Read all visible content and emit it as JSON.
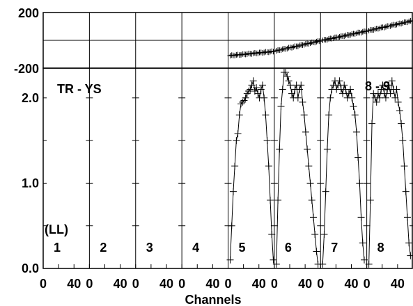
{
  "chart_data": {
    "type": "scatter",
    "title": "TR - YS",
    "subtitle": "8 - 9",
    "xlabel": "Channels",
    "panel_labels": [
      "1",
      "2",
      "3",
      "4",
      "5",
      "6",
      "7",
      "8"
    ],
    "polarization_label": "(LL)",
    "x_ticks": [
      "0",
      "40"
    ],
    "phase": {
      "ylim": [
        -200,
        200
      ],
      "y_ticks": [
        "200",
        "-200"
      ],
      "series": [
        {
          "panel": 5,
          "start": -110,
          "end": -80
        },
        {
          "panel": 6,
          "start": -75,
          "end": -5
        },
        {
          "panel": 7,
          "start": 0,
          "end": 65
        },
        {
          "panel": 8,
          "start": 70,
          "end": 140
        }
      ]
    },
    "amplitude": {
      "ylim": [
        0,
        2.3
      ],
      "y_ticks": [
        "0.0",
        "1.0",
        "2.0"
      ],
      "series": [
        {
          "panel": 5,
          "points": [
            [
              0,
              0.1
            ],
            [
              2,
              0.5
            ],
            [
              4,
              0.9
            ],
            [
              6,
              1.2
            ],
            [
              8,
              1.5
            ],
            [
              10,
              1.58
            ],
            [
              12,
              1.8
            ],
            [
              14,
              1.93
            ],
            [
              16,
              1.95
            ],
            [
              18,
              1.97
            ],
            [
              20,
              2.0
            ],
            [
              22,
              2.05
            ],
            [
              24,
              2.08
            ],
            [
              26,
              2.1
            ],
            [
              28,
              2.15
            ],
            [
              30,
              2.2
            ],
            [
              32,
              2.08
            ],
            [
              34,
              2.12
            ],
            [
              36,
              2.05
            ],
            [
              38,
              2.0
            ],
            [
              40,
              2.1
            ],
            [
              42,
              2.15
            ],
            [
              44,
              2.0
            ],
            [
              46,
              1.8
            ],
            [
              48,
              1.5
            ],
            [
              50,
              1.2
            ],
            [
              52,
              0.8
            ],
            [
              54,
              0.4
            ],
            [
              56,
              0.1
            ]
          ]
        },
        {
          "panel": 6,
          "points": [
            [
              0,
              0.05
            ],
            [
              2,
              0.8
            ],
            [
              4,
              1.4
            ],
            [
              6,
              1.9
            ],
            [
              8,
              2.1
            ],
            [
              10,
              2.3
            ],
            [
              12,
              2.3
            ],
            [
              14,
              2.25
            ],
            [
              16,
              2.2
            ],
            [
              18,
              2.15
            ],
            [
              20,
              2.05
            ],
            [
              22,
              2.0
            ],
            [
              24,
              2.1
            ],
            [
              26,
              2.15
            ],
            [
              28,
              2.0
            ],
            [
              30,
              2.1
            ],
            [
              32,
              2.15
            ],
            [
              34,
              1.95
            ],
            [
              36,
              1.8
            ],
            [
              38,
              1.6
            ],
            [
              40,
              1.4
            ],
            [
              42,
              1.2
            ],
            [
              44,
              1.0
            ],
            [
              46,
              0.8
            ],
            [
              48,
              0.6
            ],
            [
              50,
              0.4
            ],
            [
              52,
              0.2
            ],
            [
              54,
              0.05
            ]
          ]
        },
        {
          "panel": 7,
          "points": [
            [
              0,
              0.05
            ],
            [
              2,
              0.4
            ],
            [
              4,
              0.9
            ],
            [
              6,
              1.4
            ],
            [
              8,
              1.8
            ],
            [
              10,
              2.0
            ],
            [
              12,
              2.1
            ],
            [
              14,
              2.15
            ],
            [
              16,
              2.2
            ],
            [
              18,
              2.1
            ],
            [
              20,
              2.15
            ],
            [
              22,
              2.2
            ],
            [
              24,
              2.1
            ],
            [
              26,
              2.05
            ],
            [
              28,
              2.15
            ],
            [
              30,
              2.1
            ],
            [
              32,
              2.0
            ],
            [
              34,
              2.05
            ],
            [
              36,
              2.1
            ],
            [
              38,
              2.0
            ],
            [
              40,
              1.9
            ],
            [
              42,
              1.8
            ],
            [
              44,
              1.6
            ],
            [
              46,
              1.3
            ],
            [
              48,
              1.0
            ],
            [
              50,
              0.6
            ],
            [
              52,
              0.3
            ],
            [
              54,
              0.1
            ]
          ]
        },
        {
          "panel": 8,
          "points": [
            [
              0,
              0.05
            ],
            [
              2,
              0.8
            ],
            [
              4,
              1.7
            ],
            [
              6,
              2.05
            ],
            [
              8,
              2.0
            ],
            [
              10,
              1.95
            ],
            [
              12,
              2.05
            ],
            [
              14,
              2.0
            ],
            [
              16,
              2.1
            ],
            [
              18,
              2.15
            ],
            [
              20,
              2.05
            ],
            [
              22,
              2.0
            ],
            [
              24,
              2.1
            ],
            [
              26,
              2.15
            ],
            [
              28,
              2.05
            ],
            [
              30,
              2.2
            ],
            [
              32,
              2.1
            ],
            [
              34,
              2.0
            ],
            [
              36,
              2.1
            ],
            [
              38,
              1.95
            ],
            [
              40,
              1.85
            ],
            [
              42,
              1.7
            ],
            [
              44,
              1.5
            ],
            [
              46,
              1.2
            ],
            [
              48,
              0.9
            ],
            [
              50,
              0.6
            ],
            [
              52,
              0.3
            ],
            [
              54,
              0.15
            ]
          ]
        }
      ]
    }
  }
}
